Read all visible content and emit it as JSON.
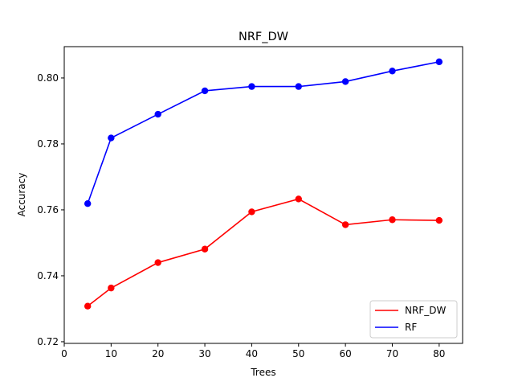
{
  "chart_data": {
    "type": "line",
    "title": "NRF_DW",
    "xlabel": "Trees",
    "ylabel": "Accuracy",
    "xlim": [
      0,
      85
    ],
    "ylim": [
      0.7195,
      0.8095
    ],
    "xticks": [
      0,
      10,
      20,
      30,
      40,
      50,
      60,
      70,
      80
    ],
    "yticks": [
      0.72,
      0.74,
      0.76,
      0.78,
      0.8
    ],
    "xtick_labels": [
      "0",
      "10",
      "20",
      "30",
      "40",
      "50",
      "60",
      "70",
      "80"
    ],
    "ytick_labels": [
      "0.72",
      "0.74",
      "0.76",
      "0.78",
      "0.80"
    ],
    "x": [
      5,
      10,
      20,
      30,
      40,
      50,
      60,
      70,
      80
    ],
    "grid": false,
    "legend_position": "lower-right",
    "series": [
      {
        "name": "NRF_DW",
        "color": "#ff0000",
        "values": [
          0.7308,
          0.7363,
          0.744,
          0.7481,
          0.7594,
          0.7633,
          0.7555,
          0.757,
          0.7568
        ]
      },
      {
        "name": "RF",
        "color": "#0000ff",
        "values": [
          0.7619,
          0.7818,
          0.789,
          0.7961,
          0.7974,
          0.7974,
          0.7989,
          0.8021,
          0.8049
        ]
      }
    ]
  }
}
